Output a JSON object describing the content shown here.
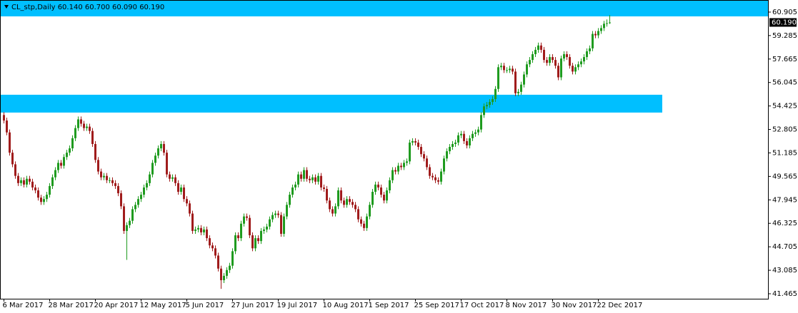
{
  "chart_data": {
    "type": "candlestick",
    "title": "CL_stp,Daily  60.140 60.700 60.090 60.190",
    "up_color": "#1f9b1f",
    "down_color": "#a01c1c",
    "zone_color": "#00bfff",
    "ylim": [
      41.12,
      61.69
    ],
    "yticks": [
      60.905,
      59.285,
      57.665,
      56.045,
      54.425,
      52.805,
      51.185,
      49.565,
      47.945,
      46.325,
      44.705,
      43.085,
      41.465
    ],
    "last_price": {
      "value": 60.19,
      "label": "60.190"
    },
    "zones": [
      {
        "low": 60.61,
        "high": 61.69
      },
      {
        "low": 53.97,
        "high": 55.2
      }
    ],
    "categories": [
      "6 Mar 2017",
      null,
      null,
      null,
      null,
      null,
      null,
      null,
      null,
      null,
      null,
      null,
      null,
      null,
      null,
      null,
      "28 Mar 2017",
      null,
      null,
      null,
      null,
      null,
      null,
      null,
      null,
      null,
      null,
      null,
      null,
      null,
      null,
      null,
      "20 Apr 2017",
      null,
      null,
      null,
      null,
      null,
      null,
      null,
      null,
      null,
      null,
      null,
      null,
      null,
      null,
      null,
      "12 May 2017",
      null,
      null,
      null,
      null,
      null,
      null,
      null,
      null,
      null,
      null,
      null,
      null,
      null,
      null,
      null,
      "5 Jun 2017",
      null,
      null,
      null,
      null,
      null,
      null,
      null,
      null,
      null,
      null,
      null,
      null,
      null,
      null,
      null,
      "27 Jun 2017",
      null,
      null,
      null,
      null,
      null,
      null,
      null,
      null,
      null,
      null,
      null,
      null,
      null,
      null,
      null,
      "19 Jul 2017",
      null,
      null,
      null,
      null,
      null,
      null,
      null,
      null,
      null,
      null,
      null,
      null,
      null,
      null,
      null,
      "10 Aug 2017",
      null,
      null,
      null,
      null,
      null,
      null,
      null,
      null,
      null,
      null,
      null,
      null,
      null,
      null,
      null,
      "1 Sep 2017",
      null,
      null,
      null,
      null,
      null,
      null,
      null,
      null,
      null,
      null,
      null,
      null,
      null,
      null,
      null,
      "25 Sep 2017",
      null,
      null,
      null,
      null,
      null,
      null,
      null,
      null,
      null,
      null,
      null,
      null,
      null,
      null,
      null,
      "17 Oct 2017",
      null,
      null,
      null,
      null,
      null,
      null,
      null,
      null,
      null,
      null,
      null,
      null,
      null,
      null,
      null,
      "8 Nov 2017",
      null,
      null,
      null,
      null,
      null,
      null,
      null,
      null,
      null,
      null,
      null,
      null,
      null,
      null,
      null,
      "30 Nov 2017",
      null,
      null,
      null,
      null,
      null,
      null,
      null,
      null,
      null,
      null,
      null,
      null,
      null,
      null,
      null,
      "22 Dec 2017",
      null,
      null,
      null,
      null
    ],
    "ohlc": [
      [
        53.8,
        54.0,
        53.22,
        53.42
      ],
      [
        53.42,
        53.62,
        52.4,
        52.6
      ],
      [
        52.6,
        52.8,
        51.0,
        51.2
      ],
      [
        51.2,
        51.4,
        50.2,
        50.4
      ],
      [
        50.4,
        50.6,
        49.4,
        49.6
      ],
      [
        49.6,
        49.8,
        48.9,
        49.1
      ],
      [
        49.1,
        49.5,
        48.9,
        49.3
      ],
      [
        49.3,
        49.5,
        48.8,
        49.0
      ],
      [
        49.0,
        49.6,
        48.8,
        49.4
      ],
      [
        49.4,
        49.6,
        49.0,
        49.2
      ],
      [
        49.2,
        49.4,
        48.6,
        48.8
      ],
      [
        48.8,
        49.0,
        48.4,
        48.6
      ],
      [
        48.6,
        48.8,
        47.9,
        48.1
      ],
      [
        48.1,
        48.3,
        47.6,
        47.8
      ],
      [
        47.8,
        48.2,
        47.6,
        48.0
      ],
      [
        48.0,
        48.5,
        47.8,
        48.3
      ],
      [
        48.3,
        49.1,
        48.1,
        48.9
      ],
      [
        48.9,
        49.7,
        48.7,
        49.5
      ],
      [
        49.5,
        50.2,
        49.3,
        50.0
      ],
      [
        50.0,
        50.7,
        49.8,
        50.5
      ],
      [
        50.5,
        50.7,
        50.1,
        50.3
      ],
      [
        50.3,
        51.1,
        50.1,
        50.9
      ],
      [
        50.9,
        51.4,
        50.7,
        51.2
      ],
      [
        51.2,
        51.7,
        51.0,
        51.5
      ],
      [
        51.5,
        52.4,
        51.3,
        52.2
      ],
      [
        52.2,
        53.1,
        52.0,
        52.9
      ],
      [
        52.9,
        53.7,
        52.7,
        53.5
      ],
      [
        53.5,
        53.7,
        53.0,
        53.2
      ],
      [
        53.2,
        53.4,
        52.7,
        52.9
      ],
      [
        52.9,
        53.2,
        52.7,
        53.0
      ],
      [
        53.0,
        53.2,
        52.5,
        52.7
      ],
      [
        52.7,
        52.9,
        51.6,
        51.8
      ],
      [
        51.8,
        52.0,
        50.5,
        50.7
      ],
      [
        50.7,
        50.9,
        49.7,
        49.9
      ],
      [
        49.9,
        50.1,
        49.3,
        49.5
      ],
      [
        49.5,
        49.8,
        49.3,
        49.6
      ],
      [
        49.6,
        49.8,
        49.1,
        49.3
      ],
      [
        49.3,
        49.5,
        49.1,
        49.3
      ],
      [
        49.3,
        49.5,
        48.9,
        49.1
      ],
      [
        49.1,
        49.3,
        48.7,
        48.9
      ],
      [
        48.9,
        49.1,
        48.2,
        48.4
      ],
      [
        48.4,
        48.6,
        47.3,
        47.5
      ],
      [
        47.5,
        47.7,
        45.6,
        45.8
      ],
      [
        45.8,
        46.4,
        43.8,
        46.2
      ],
      [
        46.2,
        46.7,
        46.0,
        46.5
      ],
      [
        46.5,
        47.5,
        46.3,
        47.3
      ],
      [
        47.3,
        47.8,
        47.1,
        47.6
      ],
      [
        47.6,
        48.2,
        47.4,
        48.0
      ],
      [
        48.0,
        48.5,
        47.8,
        48.3
      ],
      [
        48.3,
        49.0,
        48.1,
        48.8
      ],
      [
        48.8,
        49.3,
        48.6,
        49.1
      ],
      [
        49.1,
        49.9,
        48.9,
        49.7
      ],
      [
        49.7,
        50.7,
        49.5,
        50.5
      ],
      [
        50.5,
        51.2,
        50.3,
        51.0
      ],
      [
        51.0,
        51.7,
        50.8,
        51.5
      ],
      [
        51.5,
        52.0,
        51.3,
        51.8
      ],
      [
        51.8,
        52.0,
        51.0,
        51.2
      ],
      [
        51.2,
        51.4,
        49.5,
        49.7
      ],
      [
        49.7,
        49.9,
        49.2,
        49.4
      ],
      [
        49.4,
        49.7,
        49.2,
        49.5
      ],
      [
        49.5,
        49.7,
        48.9,
        49.1
      ],
      [
        49.1,
        49.3,
        48.3,
        48.5
      ],
      [
        48.5,
        49.0,
        48.3,
        48.8
      ],
      [
        48.8,
        49.0,
        47.8,
        48.0
      ],
      [
        48.0,
        48.2,
        47.5,
        47.7
      ],
      [
        47.7,
        47.9,
        46.8,
        47.0
      ],
      [
        47.0,
        47.2,
        45.6,
        45.8
      ],
      [
        45.8,
        46.1,
        45.6,
        45.9
      ],
      [
        45.9,
        46.2,
        45.7,
        46.0
      ],
      [
        46.0,
        46.2,
        45.5,
        45.7
      ],
      [
        45.7,
        46.1,
        45.5,
        45.9
      ],
      [
        45.9,
        46.1,
        45.1,
        45.3
      ],
      [
        45.3,
        45.5,
        44.6,
        44.8
      ],
      [
        44.8,
        45.0,
        44.4,
        44.6
      ],
      [
        44.6,
        44.8,
        43.9,
        44.1
      ],
      [
        44.1,
        44.3,
        43.0,
        43.2
      ],
      [
        43.2,
        43.4,
        41.8,
        42.4
      ],
      [
        42.4,
        42.9,
        42.2,
        42.7
      ],
      [
        42.7,
        43.3,
        42.5,
        43.1
      ],
      [
        43.1,
        43.6,
        42.9,
        43.4
      ],
      [
        43.4,
        44.6,
        43.2,
        44.4
      ],
      [
        44.4,
        45.7,
        44.2,
        45.5
      ],
      [
        45.5,
        45.7,
        45.1,
        45.3
      ],
      [
        45.3,
        46.5,
        45.1,
        46.3
      ],
      [
        46.3,
        47.0,
        46.1,
        46.8
      ],
      [
        46.8,
        47.0,
        46.5,
        46.7
      ],
      [
        46.7,
        46.9,
        45.3,
        45.5
      ],
      [
        45.5,
        45.7,
        44.4,
        44.6
      ],
      [
        44.6,
        45.5,
        44.4,
        45.3
      ],
      [
        45.3,
        45.5,
        44.9,
        45.1
      ],
      [
        45.1,
        46.0,
        44.9,
        45.8
      ],
      [
        45.8,
        46.1,
        45.6,
        45.9
      ],
      [
        45.9,
        46.3,
        45.7,
        46.1
      ],
      [
        46.1,
        46.8,
        45.9,
        46.6
      ],
      [
        46.6,
        47.1,
        46.4,
        46.9
      ],
      [
        46.9,
        47.2,
        46.7,
        47.0
      ],
      [
        47.0,
        47.2,
        46.7,
        46.9
      ],
      [
        46.9,
        47.1,
        45.4,
        45.6
      ],
      [
        45.6,
        47.0,
        45.4,
        46.8
      ],
      [
        46.8,
        47.8,
        46.6,
        47.6
      ],
      [
        47.6,
        48.5,
        47.4,
        48.3
      ],
      [
        48.3,
        49.0,
        48.1,
        48.8
      ],
      [
        48.8,
        49.2,
        48.6,
        49.0
      ],
      [
        49.0,
        49.9,
        48.8,
        49.7
      ],
      [
        49.7,
        49.9,
        49.2,
        49.4
      ],
      [
        49.4,
        50.2,
        49.2,
        50.0
      ],
      [
        50.0,
        50.2,
        49.2,
        49.4
      ],
      [
        49.4,
        49.6,
        49.1,
        49.3
      ],
      [
        49.3,
        49.7,
        49.1,
        49.5
      ],
      [
        49.5,
        49.7,
        49.0,
        49.2
      ],
      [
        49.2,
        49.8,
        49.0,
        49.6
      ],
      [
        49.6,
        49.8,
        48.6,
        48.8
      ],
      [
        48.8,
        49.0,
        48.5,
        48.7
      ],
      [
        48.7,
        48.9,
        47.7,
        47.9
      ],
      [
        47.9,
        48.1,
        47.1,
        47.3
      ],
      [
        47.3,
        47.5,
        46.8,
        47.0
      ],
      [
        47.0,
        47.7,
        46.8,
        47.5
      ],
      [
        47.5,
        48.8,
        47.3,
        48.6
      ],
      [
        48.6,
        48.8,
        47.7,
        47.9
      ],
      [
        47.9,
        48.1,
        47.4,
        47.6
      ],
      [
        47.6,
        48.2,
        47.4,
        48.0
      ],
      [
        48.0,
        48.2,
        47.6,
        47.8
      ],
      [
        47.8,
        48.0,
        47.4,
        47.6
      ],
      [
        47.6,
        47.8,
        47.1,
        47.3
      ],
      [
        47.3,
        47.5,
        46.4,
        46.6
      ],
      [
        46.6,
        46.8,
        46.1,
        46.3
      ],
      [
        46.3,
        46.5,
        45.8,
        46.0
      ],
      [
        46.0,
        47.0,
        45.8,
        46.8
      ],
      [
        46.8,
        47.8,
        46.6,
        47.6
      ],
      [
        47.6,
        48.7,
        47.4,
        48.5
      ],
      [
        48.5,
        49.2,
        48.3,
        49.0
      ],
      [
        49.0,
        49.2,
        48.6,
        48.8
      ],
      [
        48.8,
        49.0,
        48.1,
        48.3
      ],
      [
        48.3,
        48.5,
        47.7,
        47.9
      ],
      [
        47.9,
        48.8,
        47.7,
        48.6
      ],
      [
        48.6,
        49.5,
        48.4,
        49.3
      ],
      [
        49.3,
        50.2,
        49.1,
        50.0
      ],
      [
        50.0,
        50.2,
        49.7,
        49.9
      ],
      [
        49.9,
        50.5,
        49.7,
        50.3
      ],
      [
        50.3,
        50.5,
        50.0,
        50.2
      ],
      [
        50.2,
        50.7,
        50.0,
        50.5
      ],
      [
        50.5,
        50.8,
        50.3,
        50.6
      ],
      [
        50.6,
        52.1,
        50.4,
        51.9
      ],
      [
        51.9,
        52.2,
        51.7,
        52.0
      ],
      [
        52.0,
        52.2,
        51.7,
        51.9
      ],
      [
        51.9,
        52.1,
        51.4,
        51.6
      ],
      [
        51.6,
        51.8,
        50.9,
        51.1
      ],
      [
        51.1,
        51.3,
        50.6,
        50.8
      ],
      [
        50.8,
        51.0,
        50.0,
        50.2
      ],
      [
        50.2,
        50.4,
        49.4,
        49.6
      ],
      [
        49.6,
        49.8,
        49.3,
        49.5
      ],
      [
        49.5,
        49.7,
        49.1,
        49.3
      ],
      [
        49.3,
        49.5,
        49.0,
        49.2
      ],
      [
        49.2,
        50.1,
        49.0,
        49.9
      ],
      [
        49.9,
        51.0,
        49.7,
        50.8
      ],
      [
        50.8,
        51.5,
        50.6,
        51.3
      ],
      [
        51.3,
        51.8,
        51.1,
        51.6
      ],
      [
        51.6,
        52.0,
        51.4,
        51.8
      ],
      [
        51.8,
        52.1,
        51.6,
        51.9
      ],
      [
        51.9,
        52.6,
        51.7,
        52.4
      ],
      [
        52.4,
        52.7,
        52.2,
        52.5
      ],
      [
        52.5,
        52.7,
        51.8,
        52.0
      ],
      [
        52.0,
        52.2,
        51.5,
        51.7
      ],
      [
        51.7,
        52.4,
        51.5,
        52.2
      ],
      [
        52.2,
        52.7,
        52.0,
        52.5
      ],
      [
        52.5,
        52.8,
        52.3,
        52.6
      ],
      [
        52.6,
        53.0,
        52.4,
        52.8
      ],
      [
        52.8,
        54.0,
        52.6,
        53.8
      ],
      [
        53.8,
        54.6,
        53.6,
        54.4
      ],
      [
        54.4,
        54.7,
        54.2,
        54.5
      ],
      [
        54.5,
        54.9,
        54.3,
        54.7
      ],
      [
        54.7,
        55.1,
        54.5,
        54.9
      ],
      [
        54.9,
        55.8,
        54.7,
        55.6
      ],
      [
        55.6,
        57.3,
        55.4,
        57.1
      ],
      [
        57.1,
        57.4,
        56.9,
        57.2
      ],
      [
        57.2,
        57.4,
        56.7,
        56.9
      ],
      [
        56.9,
        57.1,
        56.7,
        56.9
      ],
      [
        56.9,
        57.2,
        56.7,
        57.0
      ],
      [
        57.0,
        57.2,
        56.6,
        56.8
      ],
      [
        56.8,
        57.0,
        55.1,
        55.3
      ],
      [
        55.3,
        55.6,
        55.1,
        55.4
      ],
      [
        55.4,
        56.1,
        55.2,
        55.9
      ],
      [
        55.9,
        56.8,
        55.7,
        56.6
      ],
      [
        56.6,
        57.5,
        56.4,
        57.3
      ],
      [
        57.3,
        57.8,
        57.1,
        57.6
      ],
      [
        57.6,
        58.2,
        57.4,
        58.0
      ],
      [
        58.0,
        58.5,
        57.8,
        58.3
      ],
      [
        58.3,
        58.8,
        58.1,
        58.6
      ],
      [
        58.6,
        58.8,
        58.1,
        58.3
      ],
      [
        58.3,
        58.5,
        57.4,
        57.6
      ],
      [
        57.6,
        57.8,
        57.2,
        57.4
      ],
      [
        57.4,
        58.0,
        57.2,
        57.8
      ],
      [
        57.8,
        58.0,
        57.4,
        57.6
      ],
      [
        57.6,
        57.8,
        57.0,
        57.2
      ],
      [
        57.2,
        57.4,
        56.2,
        56.4
      ],
      [
        56.4,
        57.9,
        56.2,
        57.7
      ],
      [
        57.7,
        58.2,
        57.5,
        58.0
      ],
      [
        58.0,
        58.2,
        57.6,
        57.8
      ],
      [
        57.8,
        58.0,
        57.0,
        57.2
      ],
      [
        57.2,
        57.4,
        56.6,
        56.8
      ],
      [
        56.8,
        57.3,
        56.6,
        57.1
      ],
      [
        57.1,
        57.5,
        56.9,
        57.3
      ],
      [
        57.3,
        57.7,
        57.1,
        57.5
      ],
      [
        57.5,
        58.0,
        57.3,
        57.8
      ],
      [
        57.8,
        58.4,
        57.6,
        58.2
      ],
      [
        58.2,
        58.6,
        58.0,
        58.4
      ],
      [
        58.4,
        59.6,
        58.2,
        59.4
      ],
      [
        59.4,
        59.6,
        59.1,
        59.3
      ],
      [
        59.3,
        59.8,
        59.1,
        59.6
      ],
      [
        59.6,
        60.0,
        59.4,
        59.8
      ],
      [
        59.8,
        60.3,
        59.6,
        60.1
      ],
      [
        60.1,
        60.4,
        59.9,
        60.14
      ],
      [
        60.14,
        60.7,
        60.09,
        60.19
      ]
    ]
  }
}
